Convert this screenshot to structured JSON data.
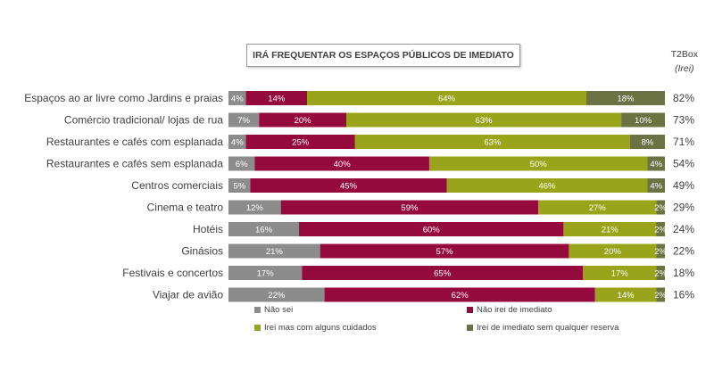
{
  "title": "IRÁ FREQUENTAR OS ESPAÇOS PÚBLICOS DE IMEDIATO",
  "t2box_header": {
    "line1": "T2Box",
    "line2": "(Irei)"
  },
  "colors": {
    "nao_sei": "#8c8c8c",
    "nao_irei": "#940a3c",
    "irei_cuidados": "#9aa41a",
    "irei_sem_reserva": "#6b7243"
  },
  "legend": [
    {
      "key": "nao_sei",
      "label": "Não sei"
    },
    {
      "key": "nao_irei",
      "label": "Não irei de imediato"
    },
    {
      "key": "irei_cuidados",
      "label": "Irei mas com alguns cuidados"
    },
    {
      "key": "irei_sem_reserva",
      "label": "Irei de imediato sem qualquer reserva"
    }
  ],
  "chart_data": {
    "type": "bar",
    "orientation": "horizontal-stacked-100",
    "title": "IRÁ FREQUENTAR OS ESPAÇOS PÚBLICOS DE IMEDIATO",
    "categories": [
      "Espaços ao ar livre como Jardins e praias",
      "Comércio tradicional/ lojas de rua",
      "Restaurantes e cafés com esplanada",
      "Restaurantes e cafés sem esplanada",
      "Centros comerciais",
      "Cinema e teatro",
      "Hotéis",
      "Ginásios",
      "Festivais e concertos",
      "Viajar de avião"
    ],
    "series": [
      {
        "name": "Não sei",
        "key": "nao_sei",
        "values": [
          4,
          7,
          4,
          6,
          5,
          12,
          16,
          21,
          17,
          22
        ]
      },
      {
        "name": "Não irei de imediato",
        "key": "nao_irei",
        "values": [
          14,
          20,
          25,
          40,
          45,
          59,
          60,
          57,
          65,
          62
        ]
      },
      {
        "name": "Irei mas com alguns cuidados",
        "key": "irei_cuidados",
        "values": [
          64,
          63,
          63,
          50,
          46,
          27,
          21,
          20,
          17,
          14
        ]
      },
      {
        "name": "Irei de imediato sem qualquer reserva",
        "key": "irei_sem_reserva",
        "values": [
          18,
          10,
          8,
          4,
          4,
          2,
          2,
          2,
          2,
          2
        ]
      }
    ],
    "t2box": [
      82,
      73,
      71,
      54,
      49,
      29,
      24,
      22,
      18,
      16
    ],
    "unit": "%",
    "legend_position": "bottom"
  }
}
